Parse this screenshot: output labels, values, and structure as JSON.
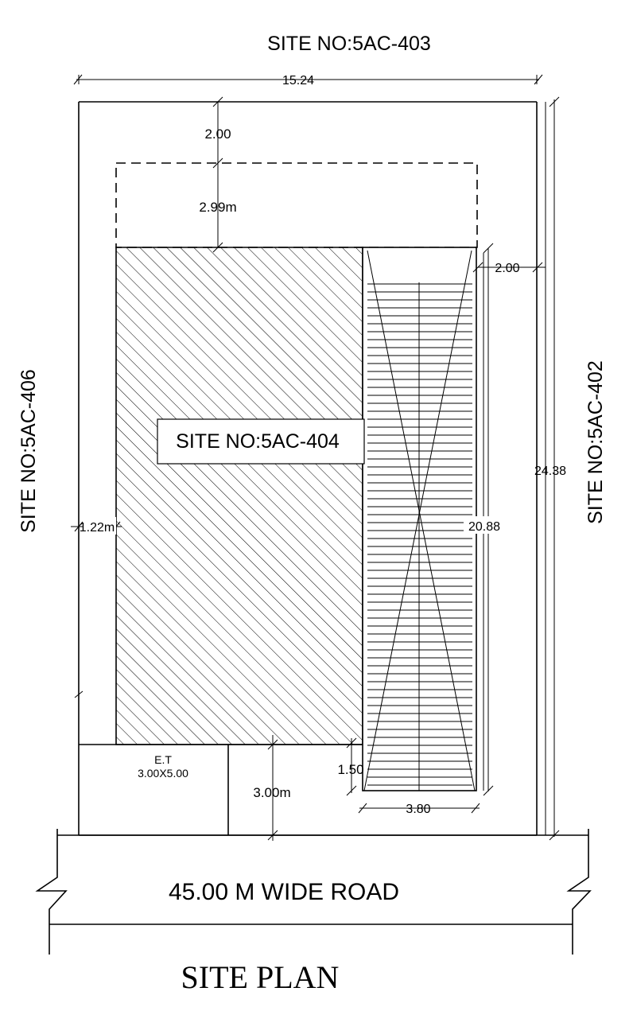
{
  "labels": {
    "site_top": "SITE NO:5AC-403",
    "site_left": "SITE NO:5AC-406",
    "site_right": "SITE NO:5AC-402",
    "site_center": "SITE NO:5AC-404",
    "road": "45.00 M WIDE ROAD",
    "plan_title": "SITE PLAN",
    "et_name": "E.T",
    "et_size": "3.00X5.00"
  },
  "dimensions": {
    "overall_width": "15.24",
    "overall_depth": "24.38",
    "rear_setback": "2.00",
    "rear_extension": "2.99m",
    "right_setback": "2.00",
    "left_setback": "1.22m",
    "ramp_length": "20.88",
    "ramp_bottom": "1.50",
    "ramp_width": "3.80",
    "front_setback": "3.00m"
  }
}
